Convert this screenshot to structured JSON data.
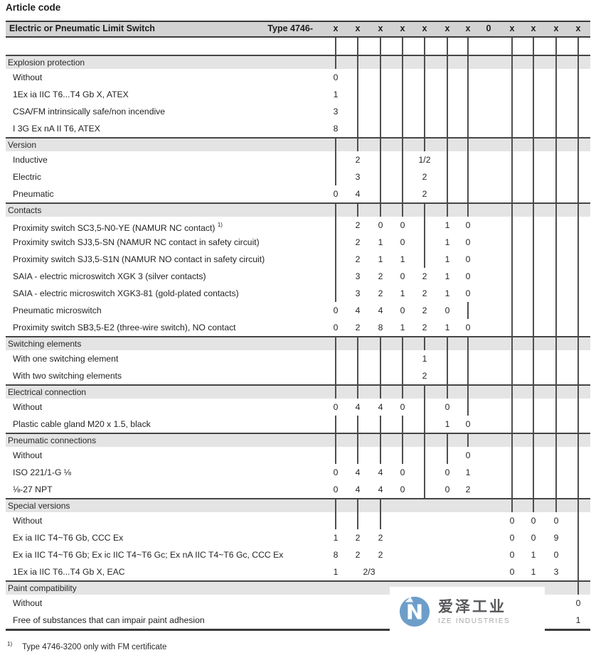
{
  "title": "Article code",
  "header": {
    "product": "Electric or Pneumatic Limit Switch",
    "type_label": "Type 4746-",
    "code_cells": [
      "x",
      "x",
      "x",
      "x",
      "x",
      "x",
      "x",
      "0",
      "x",
      "x",
      "x",
      "x"
    ]
  },
  "top_band_cols": [
    1,
    2,
    3,
    4,
    5,
    6,
    7,
    9,
    10,
    11,
    12
  ],
  "sections": [
    {
      "name": "Explosion protection",
      "active_cols": [
        1,
        2,
        3,
        4,
        5,
        6,
        7,
        9,
        10,
        11,
        12
      ],
      "rows": [
        {
          "label": "Without",
          "digits": {
            "1": "0"
          }
        },
        {
          "label": "1Ex ia IIC T6...T4 Gb X, ATEX",
          "digits": {
            "1": "1"
          }
        },
        {
          "label": "CSA/FM intrinsically safe/non incendive",
          "digits": {
            "1": "3"
          }
        },
        {
          "label": "I 3G Ex nA II T6, ATEX",
          "digits": {
            "1": "8"
          }
        }
      ]
    },
    {
      "name": "Version",
      "active_cols": [
        1,
        2,
        3,
        4,
        5,
        6,
        7,
        9,
        10,
        11,
        12
      ],
      "rows": [
        {
          "label": "Inductive",
          "digits": {
            "2": "2",
            "5": "1/2"
          }
        },
        {
          "label": "Electric",
          "digits": {
            "2": "3",
            "5": "2"
          }
        },
        {
          "label": "Pneumatic",
          "digits": {
            "1": "0",
            "2": "4",
            "5": "2"
          }
        }
      ]
    },
    {
      "name": "Contacts",
      "active_cols": [
        1,
        2,
        3,
        4,
        5,
        6,
        7,
        9,
        10,
        11,
        12
      ],
      "rows": [
        {
          "label": "Proximity switch SC3,5-N0-YE (NAMUR NC contact)",
          "sup": "1)",
          "digits": {
            "2": "2",
            "3": "0",
            "4": "0",
            "6": "1",
            "7": "0"
          }
        },
        {
          "label": "Proximity switch SJ3,5-SN (NAMUR NC contact in safety circuit)",
          "digits": {
            "2": "2",
            "3": "1",
            "4": "0",
            "6": "1",
            "7": "0"
          }
        },
        {
          "label": "Proximity switch SJ3,5-S1N (NAMUR NO contact in safety circuit)",
          "digits": {
            "2": "2",
            "3": "1",
            "4": "1",
            "6": "1",
            "7": "0"
          }
        },
        {
          "label": "SAIA - electric microswitch XGK 3 (silver contacts)",
          "digits": {
            "2": "3",
            "3": "2",
            "4": "0",
            "5": "2",
            "6": "1",
            "7": "0"
          }
        },
        {
          "label": "SAIA - electric microswitch XGK3-81 (gold-plated contacts)",
          "digits": {
            "2": "3",
            "3": "2",
            "4": "1",
            "5": "2",
            "6": "1",
            "7": "0"
          }
        },
        {
          "label": "Pneumatic microswitch",
          "digits": {
            "1": "0",
            "2": "4",
            "3": "4",
            "4": "0",
            "5": "2",
            "6": "0"
          }
        },
        {
          "label": "Proximity switch SB3,5-E2 (three-wire switch), NO contact",
          "digits": {
            "1": "0",
            "2": "2",
            "3": "8",
            "4": "1",
            "5": "2",
            "6": "1",
            "7": "0"
          }
        }
      ]
    },
    {
      "name": "Switching elements",
      "active_cols": [
        1,
        2,
        3,
        4,
        5,
        6,
        7,
        9,
        10,
        11,
        12
      ],
      "rows": [
        {
          "label": "With one switching element",
          "digits": {
            "5": "1"
          }
        },
        {
          "label": "With two switching elements",
          "digits": {
            "5": "2"
          }
        }
      ]
    },
    {
      "name": "Electrical connection",
      "active_cols": [
        1,
        2,
        3,
        4,
        5,
        6,
        7,
        9,
        10,
        11,
        12
      ],
      "rows": [
        {
          "label": "Without",
          "digits": {
            "1": "0",
            "2": "4",
            "3": "4",
            "4": "0",
            "6": "0"
          }
        },
        {
          "label": "Plastic cable gland M20 x 1.5, black",
          "digits": {
            "6": "1",
            "7": "0"
          }
        }
      ]
    },
    {
      "name": "Pneumatic connections",
      "active_cols": [
        1,
        2,
        3,
        4,
        5,
        6,
        7,
        9,
        10,
        11,
        12
      ],
      "rows": [
        {
          "label": "Without",
          "digits": {
            "7": "0"
          }
        },
        {
          "label": "ISO 221/1-G ⅛",
          "digits": {
            "1": "0",
            "2": "4",
            "3": "4",
            "4": "0",
            "6": "0",
            "7": "1"
          }
        },
        {
          "label": "⅛-27 NPT",
          "digits": {
            "1": "0",
            "2": "4",
            "3": "4",
            "4": "0",
            "6": "0",
            "7": "2"
          }
        }
      ]
    },
    {
      "name": "Special versions",
      "active_cols": [
        1,
        2,
        3,
        9,
        10,
        11,
        12
      ],
      "rows": [
        {
          "label": "Without",
          "digits": {
            "9": "0",
            "10": "0",
            "11": "0"
          }
        },
        {
          "label": "Ex ia IIC T4~T6 Gb, CCC Ex",
          "digits": {
            "1": "1",
            "2": "2",
            "3": "2",
            "9": "0",
            "10": "0",
            "11": "9"
          }
        },
        {
          "label": "Ex ia IIC T4~T6 Gb; Ex ic IIC T4~T6 Gc; Ex nA IIC T4~T6 Gc, CCC Ex",
          "digits": {
            "1": "8",
            "2": "2",
            "3": "2",
            "9": "0",
            "10": "1",
            "11": "0"
          }
        },
        {
          "label": "1Ex ia IIC T6...T4 Gb X, EAC",
          "digits": {
            "1": "1",
            "2-3": "2/3",
            "9": "0",
            "10": "1",
            "11": "3"
          }
        }
      ]
    },
    {
      "name": "Paint compatibility",
      "active_cols": [
        12
      ],
      "rows": [
        {
          "label": "Without",
          "digits": {
            "12": "0"
          }
        },
        {
          "label": "Free of substances that can impair paint adhesion",
          "digits": {
            "12": "1"
          }
        }
      ]
    }
  ],
  "footnote": {
    "marker": "1)",
    "text": "Type 4746-3200 only with FM certificate"
  },
  "watermark": {
    "cjk": "爱泽工业",
    "latin": "IZE INDUSTRIES",
    "circle_color": "#6d9ec9"
  }
}
